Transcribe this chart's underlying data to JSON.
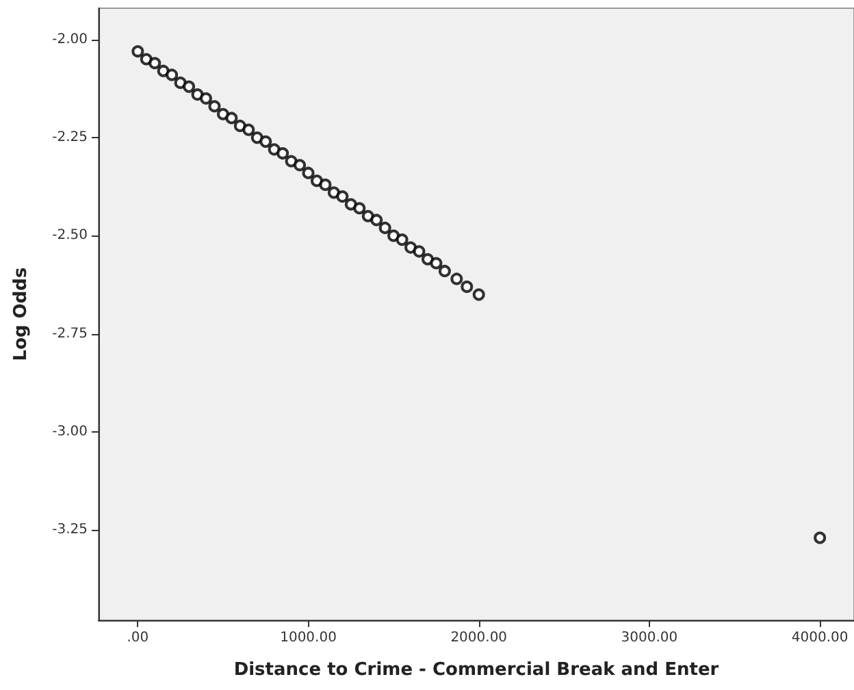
{
  "chart_data": {
    "type": "scatter",
    "xlabel": "Distance to Crime - Commercial Break and Enter",
    "ylabel": "Log Odds",
    "x": [
      0,
      50,
      100,
      150,
      200,
      250,
      300,
      350,
      400,
      450,
      500,
      550,
      600,
      650,
      700,
      750,
      800,
      850,
      900,
      950,
      1000,
      1050,
      1100,
      1150,
      1200,
      1250,
      1300,
      1350,
      1400,
      1450,
      1500,
      1550,
      1600,
      1650,
      1700,
      1750,
      1800,
      1870,
      1930,
      2000,
      4000
    ],
    "series": [
      {
        "color": "#000000",
        "values": [
          -2.03,
          -2.05,
          -2.06,
          -2.08,
          -2.09,
          -2.11,
          -2.12,
          -2.14,
          -2.15,
          -2.17,
          -2.19,
          -2.2,
          -2.22,
          -2.23,
          -2.25,
          -2.26,
          -2.28,
          -2.29,
          -2.31,
          -2.32,
          -2.34,
          -2.36,
          -2.37,
          -2.39,
          -2.4,
          -2.42,
          -2.43,
          -2.45,
          -2.46,
          -2.48,
          -2.5,
          -2.51,
          -2.53,
          -2.54,
          -2.56,
          -2.57,
          -2.59,
          -2.61,
          -2.63,
          -2.65,
          -3.27
        ]
      }
    ],
    "xlim": [
      -230,
      4200
    ],
    "xticks": [
      {
        "value": 0,
        "label": ".00"
      },
      {
        "value": 1000,
        "label": "1000.00"
      },
      {
        "value": 2000,
        "label": "2000.00"
      },
      {
        "value": 3000,
        "label": "3000.00"
      },
      {
        "value": 4000,
        "label": "4000.00"
      }
    ],
    "ylim": [
      -3.48,
      -1.92
    ],
    "yticks": [
      {
        "value": -3.25,
        "label": "-3.25"
      },
      {
        "value": -3,
        "label": "-3.00"
      },
      {
        "value": -2.75,
        "label": "-2.75"
      },
      {
        "value": -2.5,
        "label": "-2.50"
      },
      {
        "value": -2.25,
        "label": "-2.25"
      },
      {
        "value": -2,
        "label": "-2.00"
      }
    ],
    "marker": "circle",
    "grid": false
  }
}
